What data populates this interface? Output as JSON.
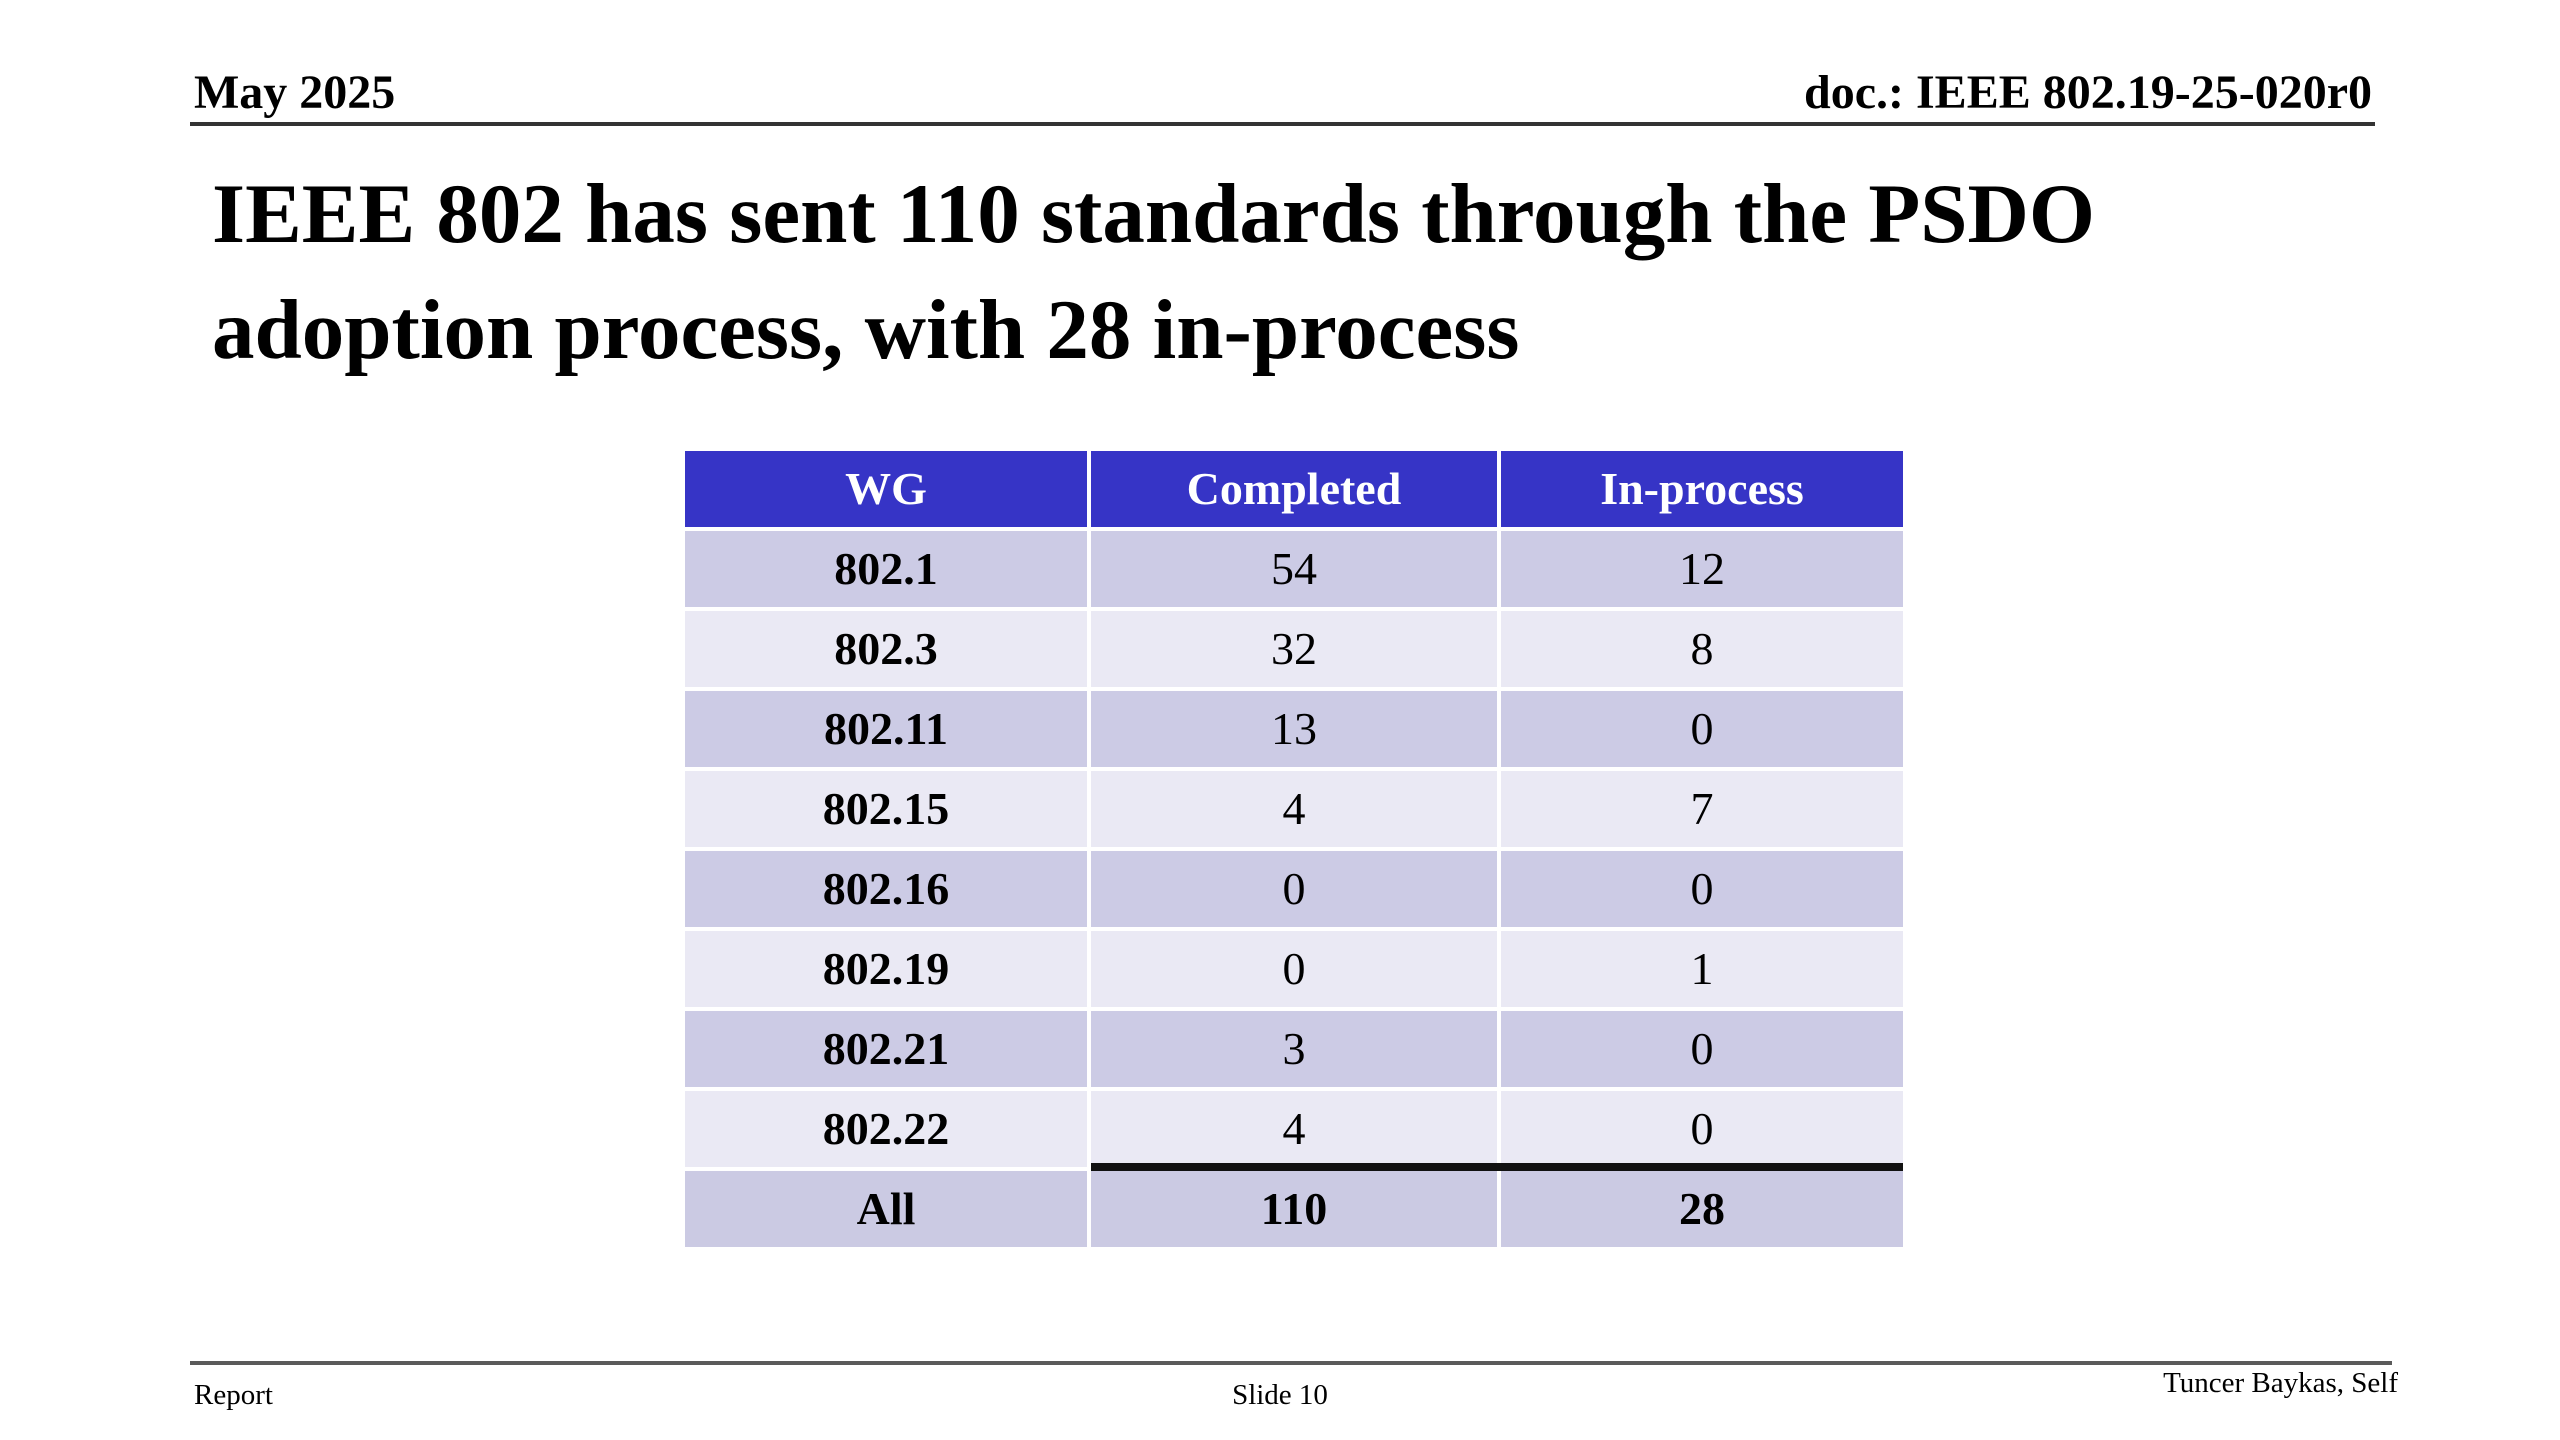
{
  "header": {
    "date": "May 2025",
    "doc": "doc.: IEEE 802.19-25-020r0"
  },
  "title": {
    "line1": "IEEE 802 has sent 110 standards through the PSDO",
    "line2": "adoption process, with 28 in-process"
  },
  "table": {
    "columns": [
      "WG",
      "Completed",
      "In-process"
    ],
    "rows": [
      {
        "wg": "802.1",
        "completed": "54",
        "in_process": "12"
      },
      {
        "wg": "802.3",
        "completed": "32",
        "in_process": "8"
      },
      {
        "wg": "802.11",
        "completed": "13",
        "in_process": "0"
      },
      {
        "wg": "802.15",
        "completed": "4",
        "in_process": "7"
      },
      {
        "wg": "802.16",
        "completed": "0",
        "in_process": "0"
      },
      {
        "wg": "802.19",
        "completed": "0",
        "in_process": "1"
      },
      {
        "wg": "802.21",
        "completed": "3",
        "in_process": "0"
      },
      {
        "wg": "802.22",
        "completed": "4",
        "in_process": "0"
      }
    ],
    "total": {
      "wg": "All",
      "completed": "110",
      "in_process": "28"
    }
  },
  "footer": {
    "left": "Report",
    "center": "Slide 10",
    "right": "Tuncer Baykas, Self"
  },
  "colors": {
    "table_header_bg": "#3634C6",
    "header_text": "#FFFFFF",
    "row_dark": "#CCCBE5",
    "row_light": "#EAE9F4",
    "total_row_bg": "#CBCAE3",
    "rule_dark": "#333333",
    "rule_footer": "#5A5A5A",
    "total_separator": "#111111"
  }
}
